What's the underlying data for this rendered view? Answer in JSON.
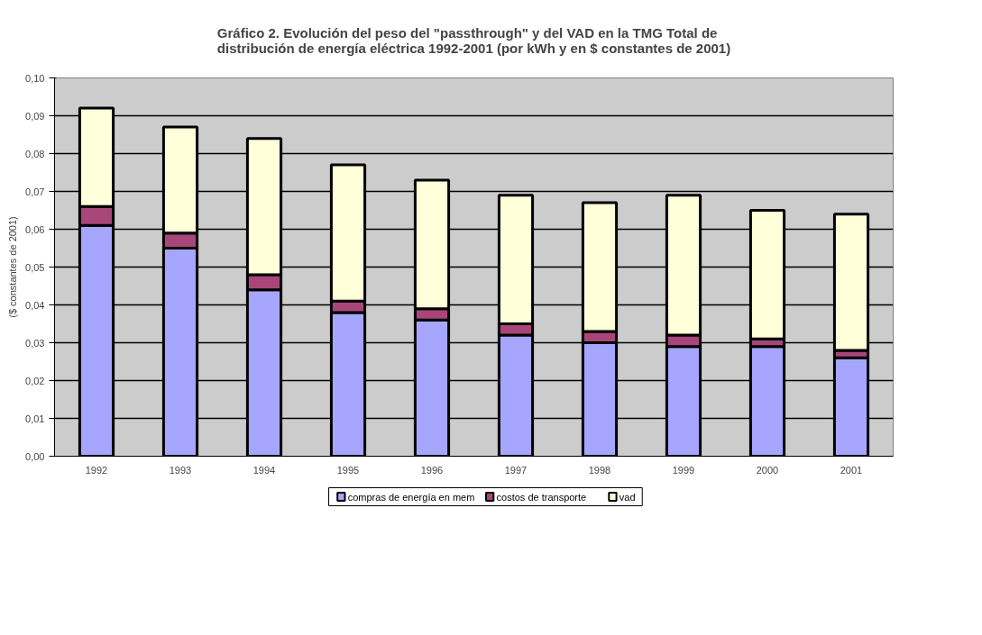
{
  "chart_data": {
    "type": "bar",
    "stacked": true,
    "title": "Gráfico 2. Evolución del peso del \"passthrough\" y del VAD en la TMG Total de\ndistribución de energía eléctrica 1992-2001 (por kWh y en $ constantes de 2001)",
    "ylabel": "($ constantes de 2001)",
    "categories": [
      "1992",
      "1993",
      "1994",
      "1995",
      "1996",
      "1997",
      "1998",
      "1999",
      "2000",
      "2001"
    ],
    "series": [
      {
        "name": "compras de energía en mem",
        "color": "#a6a6ff",
        "values": [
          0.061,
          0.055,
          0.044,
          0.038,
          0.036,
          0.032,
          0.03,
          0.029,
          0.029,
          0.026
        ]
      },
      {
        "name": "costos de transporte",
        "color": "#a8467a",
        "values": [
          0.005,
          0.004,
          0.004,
          0.003,
          0.003,
          0.003,
          0.003,
          0.003,
          0.002,
          0.002
        ]
      },
      {
        "name": "vad",
        "color": "#ffffd9",
        "values": [
          0.026,
          0.028,
          0.036,
          0.036,
          0.034,
          0.034,
          0.034,
          0.037,
          0.034,
          0.036
        ]
      }
    ],
    "ylim": [
      0,
      0.1
    ],
    "yticks": [
      {
        "value": 0,
        "label": "0,00"
      },
      {
        "value": 0.01,
        "label": "0,01"
      },
      {
        "value": 0.02,
        "label": "0,02"
      },
      {
        "value": 0.03,
        "label": "0,03"
      },
      {
        "value": 0.04,
        "label": "0,04"
      },
      {
        "value": 0.05,
        "label": "0,05"
      },
      {
        "value": 0.06,
        "label": "0,06"
      },
      {
        "value": 0.07,
        "label": "0,07"
      },
      {
        "value": 0.08,
        "label": "0,08"
      },
      {
        "value": 0.09,
        "label": "0,09"
      },
      {
        "value": 0.1,
        "label": "0,10"
      }
    ],
    "grid": "y",
    "legend": "bottom"
  }
}
